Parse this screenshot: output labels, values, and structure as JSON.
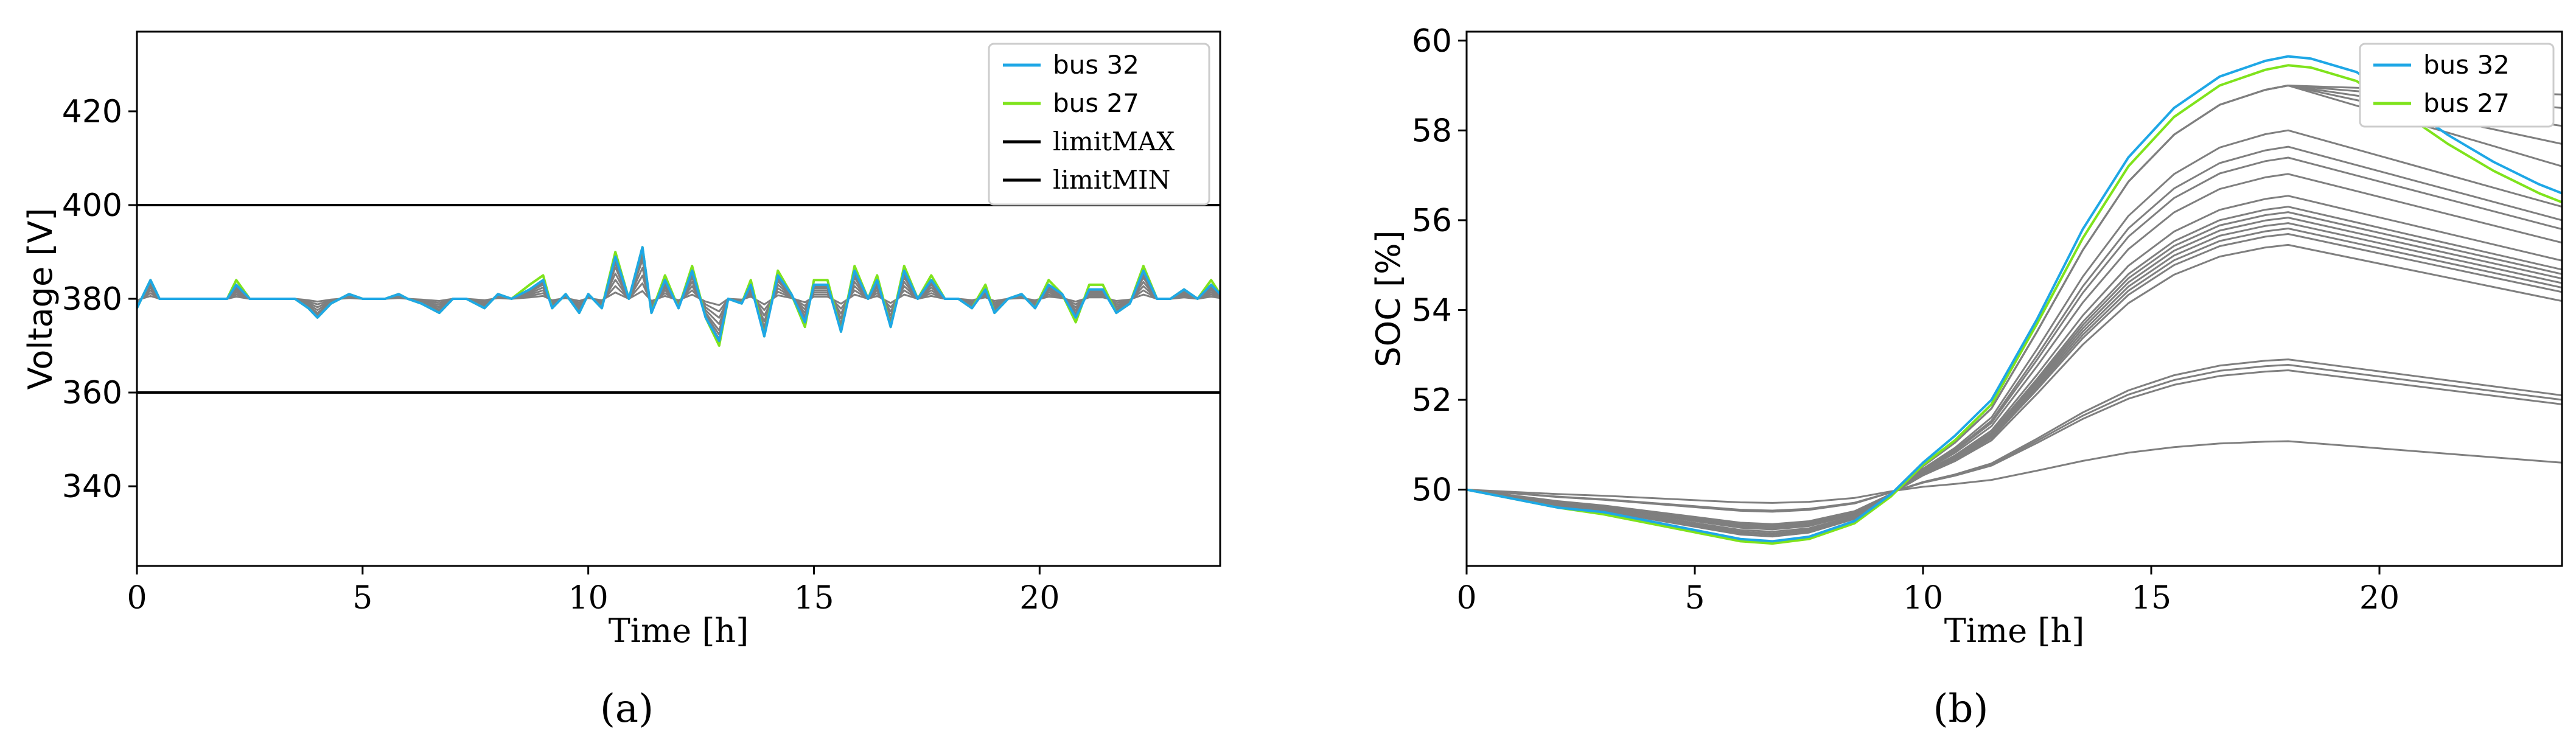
{
  "chart_data": [
    {
      "type": "line",
      "panel_caption": "(a)",
      "xlabel": "Time [h]",
      "ylabel": "Voltage [V]",
      "xlim": [
        0,
        24
      ],
      "ylim": [
        323,
        437
      ],
      "xticks": [
        0,
        5,
        10,
        15,
        20
      ],
      "yticks": [
        340,
        360,
        380,
        400,
        420
      ],
      "legend_position": "top-right",
      "legend": [
        "bus 32",
        "bus 27",
        "limitMAX",
        "limitMIN"
      ],
      "limits": {
        "max": 400,
        "min": 360
      },
      "colors": {
        "bus 32": "#1ea7e6",
        "bus 27": "#7fe31c",
        "limit": "#000000",
        "other": "#7f7f7f"
      },
      "highlight_series": [
        {
          "name": "bus 32",
          "x": [
            0,
            0.3,
            0.5,
            1,
            1.5,
            2,
            2.2,
            2.5,
            3,
            3.5,
            3.8,
            4,
            4.3,
            4.7,
            5,
            5.5,
            5.8,
            6,
            6.3,
            6.7,
            7,
            7.3,
            7.7,
            8,
            8.3,
            8.7,
            9,
            9.2,
            9.5,
            9.8,
            10,
            10.3,
            10.6,
            10.9,
            11.2,
            11.4,
            11.7,
            12,
            12.3,
            12.6,
            12.9,
            13.1,
            13.4,
            13.6,
            13.9,
            14.2,
            14.5,
            14.8,
            15,
            15.3,
            15.6,
            15.9,
            16.2,
            16.4,
            16.7,
            17,
            17.3,
            17.6,
            17.9,
            18.2,
            18.5,
            18.8,
            19,
            19.3,
            19.6,
            19.9,
            20.2,
            20.5,
            20.8,
            21.1,
            21.4,
            21.7,
            22,
            22.3,
            22.6,
            22.9,
            23.2,
            23.5,
            23.8,
            24
          ],
          "y": [
            378,
            384,
            380,
            380,
            380,
            380,
            383,
            380,
            380,
            380,
            378,
            376,
            379,
            381,
            380,
            380,
            381,
            380,
            379,
            377,
            380,
            380,
            378,
            381,
            380,
            382,
            384,
            378,
            381,
            377,
            381,
            378,
            389,
            380,
            391,
            377,
            384,
            378,
            386,
            376,
            371,
            380,
            379,
            383,
            372,
            385,
            381,
            375,
            383,
            383,
            373,
            386,
            380,
            384,
            374,
            386,
            380,
            384,
            380,
            380,
            378,
            382,
            377,
            380,
            381,
            378,
            383,
            381,
            376,
            382,
            382,
            377,
            379,
            386,
            380,
            380,
            382,
            380,
            383,
            381
          ]
        },
        {
          "name": "bus 27",
          "x": [
            0,
            0.3,
            0.5,
            1,
            1.5,
            2,
            2.2,
            2.5,
            3,
            3.5,
            3.8,
            4,
            4.3,
            4.7,
            5,
            5.5,
            5.8,
            6,
            6.3,
            6.7,
            7,
            7.3,
            7.7,
            8,
            8.3,
            8.7,
            9,
            9.2,
            9.5,
            9.8,
            10,
            10.3,
            10.6,
            10.9,
            11.2,
            11.4,
            11.7,
            12,
            12.3,
            12.6,
            12.9,
            13.1,
            13.4,
            13.6,
            13.9,
            14.2,
            14.5,
            14.8,
            15,
            15.3,
            15.6,
            15.9,
            16.2,
            16.4,
            16.7,
            17,
            17.3,
            17.6,
            17.9,
            18.2,
            18.5,
            18.8,
            19,
            19.3,
            19.6,
            19.9,
            20.2,
            20.5,
            20.8,
            21.1,
            21.4,
            21.7,
            22,
            22.3,
            22.6,
            22.9,
            23.2,
            23.5,
            23.8,
            24
          ],
          "y": [
            378,
            384,
            380,
            380,
            380,
            380,
            384,
            380,
            380,
            380,
            378,
            376,
            379,
            381,
            380,
            380,
            381,
            380,
            379,
            377,
            380,
            380,
            378,
            381,
            380,
            383,
            385,
            378,
            381,
            377,
            381,
            378,
            390,
            380,
            391,
            377,
            385,
            378,
            387,
            376,
            370,
            380,
            379,
            384,
            372,
            386,
            381,
            374,
            384,
            384,
            373,
            387,
            380,
            385,
            374,
            387,
            380,
            385,
            380,
            380,
            378,
            383,
            377,
            380,
            381,
            378,
            384,
            381,
            375,
            383,
            383,
            377,
            379,
            387,
            380,
            380,
            382,
            380,
            384,
            381
          ]
        }
      ]
    },
    {
      "type": "line",
      "panel_caption": "(b)",
      "xlabel": "Time [h]",
      "ylabel": "SOC [%]",
      "xlim": [
        0,
        24
      ],
      "ylim": [
        48.3,
        60.2
      ],
      "xticks": [
        0,
        5,
        10,
        15,
        20
      ],
      "yticks": [
        50,
        52,
        54,
        56,
        58,
        60
      ],
      "legend_position": "top-right",
      "legend": [
        "bus 32",
        "bus 27"
      ],
      "colors": {
        "bus 32": "#1ea7e6",
        "bus 27": "#7fe31c",
        "other": "#7f7f7f"
      },
      "highlight_series": [
        {
          "name": "bus 32",
          "x": [
            0,
            1,
            2,
            3,
            4,
            5,
            6,
            6.7,
            7.5,
            8.5,
            9.3,
            10,
            10.7,
            11.5,
            12.5,
            13.5,
            14.5,
            15.5,
            16.5,
            17.5,
            18,
            18.5,
            19.5,
            20.5,
            21.5,
            22.5,
            23.5,
            24
          ],
          "y": [
            50,
            49.8,
            49.6,
            49.5,
            49.3,
            49.1,
            48.9,
            48.85,
            48.95,
            49.3,
            49.9,
            50.6,
            51.2,
            52.0,
            53.8,
            55.8,
            57.4,
            58.5,
            59.2,
            59.55,
            59.65,
            59.6,
            59.3,
            58.6,
            57.9,
            57.3,
            56.8,
            56.6
          ]
        },
        {
          "name": "bus 27",
          "x": [
            0,
            1,
            2,
            3,
            4,
            5,
            6,
            6.7,
            7.5,
            8.5,
            9.3,
            10,
            10.7,
            11.5,
            12.5,
            13.5,
            14.5,
            15.5,
            16.5,
            17.5,
            18,
            18.5,
            19.5,
            20.5,
            21.5,
            22.5,
            23.5,
            24
          ],
          "y": [
            50,
            49.8,
            49.6,
            49.45,
            49.25,
            49.05,
            48.85,
            48.8,
            48.9,
            49.25,
            49.85,
            50.55,
            51.1,
            51.9,
            53.7,
            55.6,
            57.2,
            58.3,
            59.0,
            59.35,
            59.45,
            59.4,
            59.1,
            58.4,
            57.7,
            57.1,
            56.6,
            56.4
          ]
        }
      ],
      "other_series_end_values": [
        58.8,
        58.5,
        58.1,
        57.7,
        57.2,
        56.3,
        56.0,
        55.8,
        55.5,
        55.1,
        54.9,
        54.8,
        54.7,
        54.6,
        54.5,
        54.4,
        54.2,
        52.1,
        52.0,
        51.9,
        50.6
      ]
    }
  ]
}
